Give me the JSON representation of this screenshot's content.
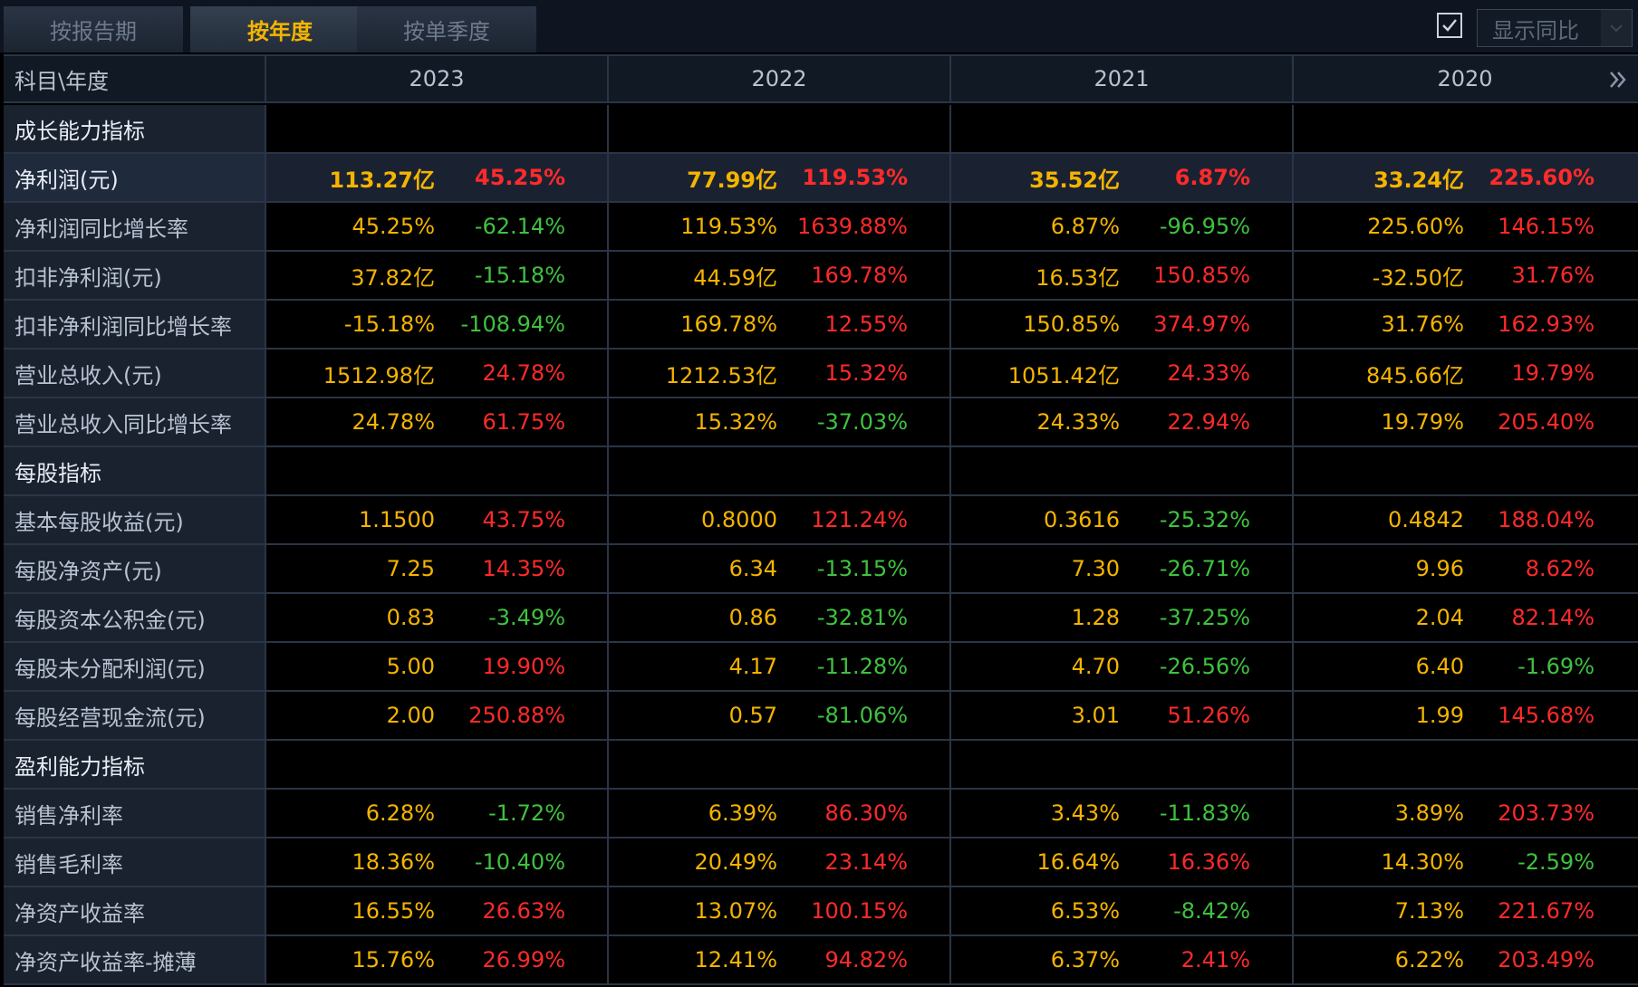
{
  "tabs": [
    {
      "label": "按报告期"
    },
    {
      "label": "按年度"
    },
    {
      "label": "按单季度"
    }
  ],
  "toggle": {
    "label": "显示同比",
    "checked": true
  },
  "header": {
    "label": "科目\\年度",
    "years": [
      "2023",
      "2022",
      "2021",
      "2020"
    ]
  },
  "rows": [
    {
      "type": "section",
      "label": "成长能力指标"
    },
    {
      "type": "data",
      "highlight": true,
      "label": "净利润(元)",
      "cells": [
        {
          "v": "113.27亿",
          "y": "45.25%"
        },
        {
          "v": "77.99亿",
          "y": "119.53%"
        },
        {
          "v": "35.52亿",
          "y": "6.87%"
        },
        {
          "v": "33.24亿",
          "y": "225.60%"
        }
      ]
    },
    {
      "type": "data",
      "label": "净利润同比增长率",
      "cells": [
        {
          "v": "45.25%",
          "y": "-62.14%"
        },
        {
          "v": "119.53%",
          "y": "1639.88%"
        },
        {
          "v": "6.87%",
          "y": "-96.95%"
        },
        {
          "v": "225.60%",
          "y": "146.15%"
        }
      ]
    },
    {
      "type": "data",
      "label": "扣非净利润(元)",
      "cells": [
        {
          "v": "37.82亿",
          "y": "-15.18%"
        },
        {
          "v": "44.59亿",
          "y": "169.78%"
        },
        {
          "v": "16.53亿",
          "y": "150.85%"
        },
        {
          "v": "-32.50亿",
          "y": "31.76%"
        }
      ]
    },
    {
      "type": "data",
      "label": "扣非净利润同比增长率",
      "cells": [
        {
          "v": "-15.18%",
          "y": "-108.94%"
        },
        {
          "v": "169.78%",
          "y": "12.55%"
        },
        {
          "v": "150.85%",
          "y": "374.97%"
        },
        {
          "v": "31.76%",
          "y": "162.93%"
        }
      ]
    },
    {
      "type": "data",
      "label": "营业总收入(元)",
      "cells": [
        {
          "v": "1512.98亿",
          "y": "24.78%"
        },
        {
          "v": "1212.53亿",
          "y": "15.32%"
        },
        {
          "v": "1051.42亿",
          "y": "24.33%"
        },
        {
          "v": "845.66亿",
          "y": "19.79%"
        }
      ]
    },
    {
      "type": "data",
      "label": "营业总收入同比增长率",
      "cells": [
        {
          "v": "24.78%",
          "y": "61.75%"
        },
        {
          "v": "15.32%",
          "y": "-37.03%"
        },
        {
          "v": "24.33%",
          "y": "22.94%"
        },
        {
          "v": "19.79%",
          "y": "205.40%"
        }
      ]
    },
    {
      "type": "section",
      "label": "每股指标"
    },
    {
      "type": "data",
      "label": "基本每股收益(元)",
      "cells": [
        {
          "v": "1.1500",
          "y": "43.75%"
        },
        {
          "v": "0.8000",
          "y": "121.24%"
        },
        {
          "v": "0.3616",
          "y": "-25.32%"
        },
        {
          "v": "0.4842",
          "y": "188.04%"
        }
      ]
    },
    {
      "type": "data",
      "label": "每股净资产(元)",
      "cells": [
        {
          "v": "7.25",
          "y": "14.35%"
        },
        {
          "v": "6.34",
          "y": "-13.15%"
        },
        {
          "v": "7.30",
          "y": "-26.71%"
        },
        {
          "v": "9.96",
          "y": "8.62%"
        }
      ]
    },
    {
      "type": "data",
      "label": "每股资本公积金(元)",
      "cells": [
        {
          "v": "0.83",
          "y": "-3.49%"
        },
        {
          "v": "0.86",
          "y": "-32.81%"
        },
        {
          "v": "1.28",
          "y": "-37.25%"
        },
        {
          "v": "2.04",
          "y": "82.14%"
        }
      ]
    },
    {
      "type": "data",
      "label": "每股未分配利润(元)",
      "cells": [
        {
          "v": "5.00",
          "y": "19.90%"
        },
        {
          "v": "4.17",
          "y": "-11.28%"
        },
        {
          "v": "4.70",
          "y": "-26.56%"
        },
        {
          "v": "6.40",
          "y": "-1.69%"
        }
      ]
    },
    {
      "type": "data",
      "label": "每股经营现金流(元)",
      "cells": [
        {
          "v": "2.00",
          "y": "250.88%"
        },
        {
          "v": "0.57",
          "y": "-81.06%"
        },
        {
          "v": "3.01",
          "y": "51.26%"
        },
        {
          "v": "1.99",
          "y": "145.68%"
        }
      ]
    },
    {
      "type": "section",
      "label": "盈利能力指标"
    },
    {
      "type": "data",
      "label": "销售净利率",
      "cells": [
        {
          "v": "6.28%",
          "y": "-1.72%"
        },
        {
          "v": "6.39%",
          "y": "86.30%"
        },
        {
          "v": "3.43%",
          "y": "-11.83%"
        },
        {
          "v": "3.89%",
          "y": "203.73%"
        }
      ]
    },
    {
      "type": "data",
      "label": "销售毛利率",
      "cells": [
        {
          "v": "18.36%",
          "y": "-10.40%"
        },
        {
          "v": "20.49%",
          "y": "23.14%"
        },
        {
          "v": "16.64%",
          "y": "16.36%"
        },
        {
          "v": "14.30%",
          "y": "-2.59%"
        }
      ]
    },
    {
      "type": "data",
      "label": "净资产收益率",
      "cells": [
        {
          "v": "16.55%",
          "y": "26.63%"
        },
        {
          "v": "13.07%",
          "y": "100.15%"
        },
        {
          "v": "6.53%",
          "y": "-8.42%"
        },
        {
          "v": "7.13%",
          "y": "221.67%"
        }
      ]
    },
    {
      "type": "data",
      "label": "净资产收益率-摊薄",
      "cells": [
        {
          "v": "15.76%",
          "y": "26.99%"
        },
        {
          "v": "12.41%",
          "y": "94.82%"
        },
        {
          "v": "6.37%",
          "y": "2.41%"
        },
        {
          "v": "6.22%",
          "y": "203.49%"
        }
      ]
    }
  ],
  "colors": {
    "value": "#f5b400",
    "up": "#ff2a2a",
    "down": "#3fc23f",
    "active_tab": "#f5b400"
  },
  "icons": {
    "checkbox": "check-icon",
    "dropdown": "chevron-down-icon",
    "next": "double-chevron-right-icon"
  }
}
